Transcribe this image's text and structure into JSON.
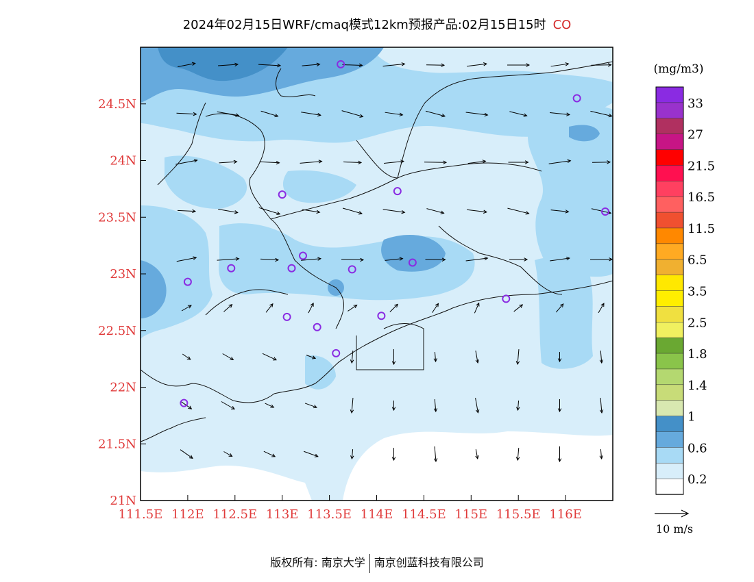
{
  "title": {
    "main": "2024年02月15日WRF/cmaq模式12km预报产品:02月15日15时",
    "variable": "CO"
  },
  "map": {
    "lon_range": [
      111.5,
      116.5
    ],
    "lat_range": [
      21.0,
      25.0
    ],
    "x_tick_labels": [
      "111.5E",
      "112E",
      "112.5E",
      "113E",
      "113.5E",
      "114E",
      "114.5E",
      "115E",
      "115.5E",
      "116E"
    ],
    "y_tick_labels": [
      "21N",
      "21.5N",
      "22N",
      "22.5N",
      "23N",
      "23.5N",
      "24N",
      "24.5N"
    ],
    "tick_label_color": "#e03a3a",
    "stations": [
      {
        "lon": 113.62,
        "lat": 24.85
      },
      {
        "lon": 116.12,
        "lat": 24.55
      },
      {
        "lon": 113.0,
        "lat": 23.7
      },
      {
        "lon": 114.22,
        "lat": 23.73
      },
      {
        "lon": 116.42,
        "lat": 23.55
      },
      {
        "lon": 112.46,
        "lat": 23.05
      },
      {
        "lon": 112.0,
        "lat": 22.93
      },
      {
        "lon": 113.1,
        "lat": 23.05
      },
      {
        "lon": 113.22,
        "lat": 23.16
      },
      {
        "lon": 113.74,
        "lat": 23.04
      },
      {
        "lon": 114.38,
        "lat": 23.1
      },
      {
        "lon": 115.37,
        "lat": 22.78
      },
      {
        "lon": 113.05,
        "lat": 22.62
      },
      {
        "lon": 113.37,
        "lat": 22.53
      },
      {
        "lon": 114.05,
        "lat": 22.63
      },
      {
        "lon": 113.57,
        "lat": 22.3
      },
      {
        "lon": 111.96,
        "lat": 21.86
      }
    ]
  },
  "legend": {
    "unit": "(mg/m3)",
    "levels": [
      "33",
      "27",
      "21.5",
      "16.5",
      "11.5",
      "6.5",
      "3.5",
      "2.5",
      "1.8",
      "1.4",
      "1",
      "0.6",
      "0.2"
    ],
    "colors": [
      "#8a2be2",
      "#9932cc",
      "#b03060",
      "#c71585",
      "#ff0000",
      "#ff1050",
      "#ff4060",
      "#ff6060",
      "#f05030",
      "#ff8800",
      "#ffaa22",
      "#f0b030",
      "#ffe800",
      "#ffee00",
      "#f0e040",
      "#f0f060",
      "#6aa832",
      "#8ac44a",
      "#b4d870",
      "#c8dc78",
      "#d8e8b0",
      "#4490c8",
      "#66aadd",
      "#a8daf5",
      "#d8eefa",
      "#ffffff"
    ],
    "wind_scale_label": "10 m/s"
  },
  "footer": {
    "left": "版权所有: 南京大学",
    "right": "南京创蓝科技有限公司"
  }
}
